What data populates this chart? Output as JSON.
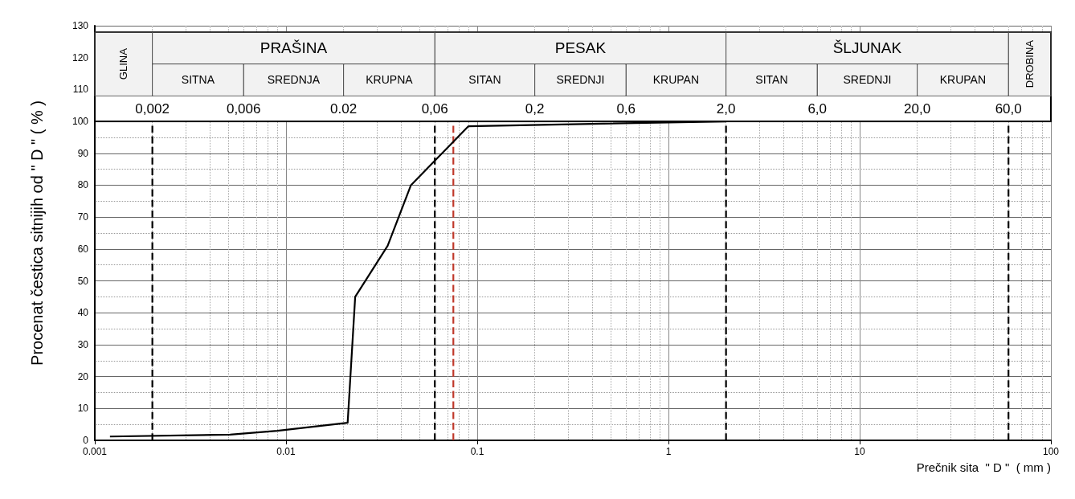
{
  "chart_data": {
    "type": "line",
    "xlabel": "Prečnik sita  \" D \"  ( mm )",
    "ylabel": "Procenat čestica sitnijih od \" D \" ( % )",
    "series": [
      {
        "color": "#000000",
        "x": [
          0.0012,
          0.0051,
          0.009,
          0.021,
          0.023,
          0.034,
          0.045,
          0.09,
          2
        ],
        "values": [
          1.2,
          1.8,
          3,
          5.5,
          45,
          61,
          80,
          98.5,
          100
        ]
      }
    ],
    "log": "x",
    "xlim": [
      0.001,
      100
    ],
    "xticks": [
      0.001,
      0.01,
      0.1,
      1,
      10,
      100
    ],
    "ylim": [
      0,
      130
    ],
    "yticks": [
      0,
      10,
      20,
      30,
      40,
      50,
      60,
      70,
      80,
      90,
      100,
      110,
      120,
      130
    ],
    "grid": true,
    "marker": "none",
    "line_style": "solid",
    "ref_lines": [
      {
        "axis": "x",
        "value": 0.002,
        "color": "#000000",
        "line_style": "dashed"
      },
      {
        "axis": "x",
        "value": 0.06,
        "color": "#000000",
        "line_style": "dashed"
      },
      {
        "axis": "x",
        "value": 0.075,
        "color": "#c0392b",
        "line_style": "dashed"
      },
      {
        "axis": "x",
        "value": 2,
        "color": "#000000",
        "line_style": "dashed"
      },
      {
        "axis": "x",
        "value": 60,
        "color": "#000000",
        "line_style": "dashed"
      }
    ],
    "bands": [
      {
        "axis": "x",
        "from": 0.001,
        "to": 0.002,
        "label": "GLINA",
        "color": "#f2f2f2"
      },
      {
        "axis": "x",
        "from": 0.002,
        "to": 0.06,
        "label": "PRAŠINA",
        "color": "#f2f2f2"
      },
      {
        "axis": "x",
        "from": 0.002,
        "to": 0.006,
        "label": "SITNA",
        "color": "#f2f2f2"
      },
      {
        "axis": "x",
        "from": 0.006,
        "to": 0.02,
        "label": "SREDNJA",
        "color": "#f2f2f2"
      },
      {
        "axis": "x",
        "from": 0.02,
        "to": 0.06,
        "label": "KRUPNA",
        "color": "#f2f2f2"
      },
      {
        "axis": "x",
        "from": 0.06,
        "to": 2,
        "label": "PESAK",
        "color": "#f2f2f2"
      },
      {
        "axis": "x",
        "from": 0.06,
        "to": 0.2,
        "label": "SITAN",
        "color": "#f2f2f2"
      },
      {
        "axis": "x",
        "from": 0.2,
        "to": 0.6,
        "label": "SREDNJI",
        "color": "#f2f2f2"
      },
      {
        "axis": "x",
        "from": 0.6,
        "to": 2,
        "label": "KRUPAN",
        "color": "#f2f2f2"
      },
      {
        "axis": "x",
        "from": 2,
        "to": 60,
        "label": "ŠLJUNAK",
        "color": "#f2f2f2"
      },
      {
        "axis": "x",
        "from": 2,
        "to": 6,
        "label": "SITAN",
        "color": "#f2f2f2"
      },
      {
        "axis": "x",
        "from": 6,
        "to": 20,
        "label": "SREDNJI",
        "color": "#f2f2f2"
      },
      {
        "axis": "x",
        "from": 20,
        "to": 60,
        "label": "KRUPAN",
        "color": "#f2f2f2"
      },
      {
        "axis": "x",
        "from": 60,
        "to": 100,
        "label": "DROBINA",
        "color": "#f2f2f2"
      }
    ],
    "annotations": [
      "0,002",
      "0,006",
      "0.02",
      "0,06",
      "0,2",
      "0,6",
      "2,0",
      "6,0",
      "20,0",
      "60,0"
    ]
  }
}
